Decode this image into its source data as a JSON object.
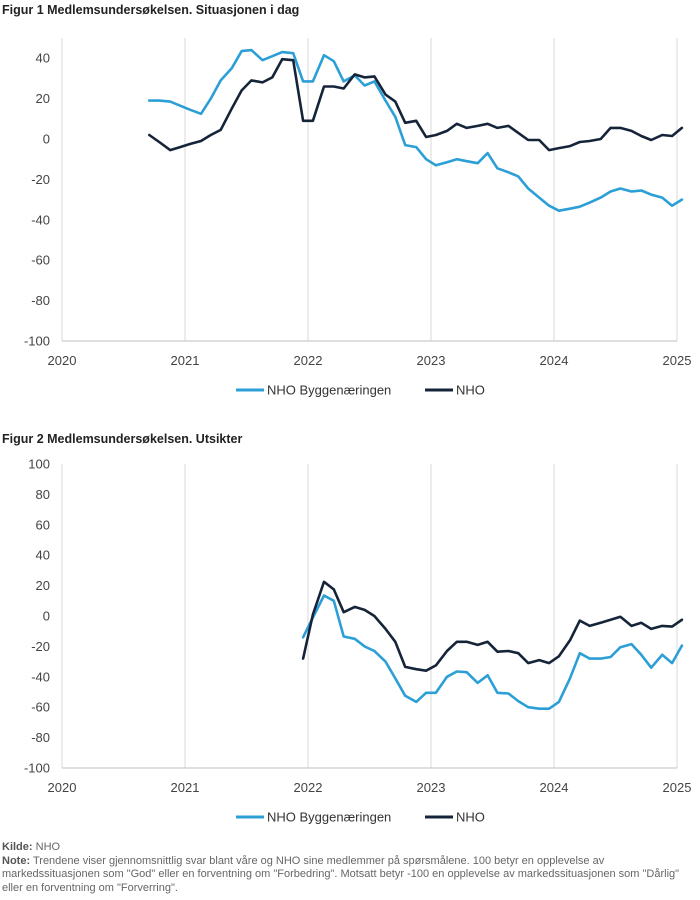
{
  "chart_data": [
    {
      "type": "line",
      "title": "Figur 1 Medlemsundersøkelsen. Situasjonen i dag",
      "xlim": [
        2020,
        2025
      ],
      "ylim": [
        -100,
        50
      ],
      "yticks": [
        -100,
        -80,
        -60,
        -40,
        -20,
        0,
        20,
        40
      ],
      "xticks": [
        2020,
        2021,
        2022,
        2023,
        2024,
        2025
      ],
      "grid": "vertical-gridlines",
      "legend": "bottom-center",
      "series": [
        {
          "name": "NHO Byggenæringen",
          "color": "#2b9fd6",
          "points": [
            [
              2020.71,
              19
            ],
            [
              2020.79,
              19
            ],
            [
              2020.88,
              18.5
            ],
            [
              2020.96,
              16.5
            ],
            [
              2021.04,
              14.5
            ],
            [
              2021.13,
              12.5
            ],
            [
              2021.21,
              20
            ],
            [
              2021.29,
              29
            ],
            [
              2021.38,
              35
            ],
            [
              2021.46,
              43.5
            ],
            [
              2021.54,
              44
            ],
            [
              2021.63,
              39
            ],
            [
              2021.71,
              41
            ],
            [
              2021.79,
              43
            ],
            [
              2021.88,
              42.5
            ],
            [
              2021.96,
              28.5
            ],
            [
              2022.04,
              28.5
            ],
            [
              2022.13,
              41.5
            ],
            [
              2022.21,
              38.5
            ],
            [
              2022.29,
              28.5
            ],
            [
              2022.38,
              31.5
            ],
            [
              2022.46,
              26.5
            ],
            [
              2022.54,
              28.5
            ],
            [
              2022.63,
              19
            ],
            [
              2022.71,
              11
            ],
            [
              2022.79,
              -3
            ],
            [
              2022.88,
              -4
            ],
            [
              2022.96,
              -10
            ],
            [
              2023.04,
              -13
            ],
            [
              2023.13,
              -11.5
            ],
            [
              2023.21,
              -10
            ],
            [
              2023.29,
              -11
            ],
            [
              2023.38,
              -12
            ],
            [
              2023.46,
              -7
            ],
            [
              2023.54,
              -14.5
            ],
            [
              2023.63,
              -16.5
            ],
            [
              2023.71,
              -18.5
            ],
            [
              2023.79,
              -24.5
            ],
            [
              2023.88,
              -29
            ],
            [
              2023.96,
              -33
            ],
            [
              2024.04,
              -35.5
            ],
            [
              2024.13,
              -34.5
            ],
            [
              2024.21,
              -33.5
            ],
            [
              2024.29,
              -31.5
            ],
            [
              2024.38,
              -29
            ],
            [
              2024.46,
              -26
            ],
            [
              2024.54,
              -24.5
            ],
            [
              2024.63,
              -26
            ],
            [
              2024.71,
              -25.5
            ],
            [
              2024.79,
              -27.5
            ],
            [
              2024.88,
              -29
            ],
            [
              2024.96,
              -33
            ],
            [
              2025.04,
              -30
            ]
          ]
        },
        {
          "name": "NHO",
          "color": "#16243a",
          "points": [
            [
              2020.71,
              2
            ],
            [
              2020.79,
              -1.5
            ],
            [
              2020.88,
              -5.5
            ],
            [
              2020.96,
              -4
            ],
            [
              2021.04,
              -2.5
            ],
            [
              2021.13,
              -1
            ],
            [
              2021.21,
              2
            ],
            [
              2021.29,
              4.5
            ],
            [
              2021.38,
              15
            ],
            [
              2021.46,
              24
            ],
            [
              2021.54,
              29
            ],
            [
              2021.63,
              28
            ],
            [
              2021.71,
              30.5
            ],
            [
              2021.79,
              39.5
            ],
            [
              2021.88,
              39
            ],
            [
              2021.96,
              9
            ],
            [
              2022.04,
              9
            ],
            [
              2022.13,
              26
            ],
            [
              2022.21,
              26
            ],
            [
              2022.29,
              25
            ],
            [
              2022.38,
              32
            ],
            [
              2022.46,
              30.5
            ],
            [
              2022.54,
              31
            ],
            [
              2022.63,
              22
            ],
            [
              2022.71,
              18.5
            ],
            [
              2022.79,
              8
            ],
            [
              2022.88,
              9
            ],
            [
              2022.96,
              1
            ],
            [
              2023.04,
              2
            ],
            [
              2023.13,
              4
            ],
            [
              2023.21,
              7.5
            ],
            [
              2023.29,
              5.5
            ],
            [
              2023.38,
              6.5
            ],
            [
              2023.46,
              7.5
            ],
            [
              2023.54,
              5.5
            ],
            [
              2023.63,
              6.5
            ],
            [
              2023.71,
              3
            ],
            [
              2023.79,
              -0.5
            ],
            [
              2023.88,
              -0.5
            ],
            [
              2023.96,
              -5.5
            ],
            [
              2024.04,
              -4.5
            ],
            [
              2024.13,
              -3.5
            ],
            [
              2024.21,
              -1.5
            ],
            [
              2024.29,
              -1
            ],
            [
              2024.38,
              0
            ],
            [
              2024.46,
              5.5
            ],
            [
              2024.54,
              5.5
            ],
            [
              2024.63,
              4
            ],
            [
              2024.71,
              1.5
            ],
            [
              2024.79,
              -0.5
            ],
            [
              2024.88,
              2
            ],
            [
              2024.96,
              1.5
            ],
            [
              2025.04,
              5.5
            ]
          ]
        }
      ]
    },
    {
      "type": "line",
      "title": "Figur 2 Medlemsundersøkelsen. Utsikter",
      "xlim": [
        2020,
        2025
      ],
      "ylim": [
        -100,
        100
      ],
      "yticks": [
        -100,
        -80,
        -60,
        -40,
        -20,
        0,
        20,
        40,
        60,
        80,
        100
      ],
      "xticks": [
        2020,
        2021,
        2022,
        2023,
        2024,
        2025
      ],
      "grid": "vertical-gridlines",
      "legend": "bottom-center",
      "series": [
        {
          "name": "NHO Byggenæringen",
          "color": "#2b9fd6",
          "points": [
            [
              2021.96,
              -14
            ],
            [
              2022.04,
              -1
            ],
            [
              2022.13,
              13.5
            ],
            [
              2022.21,
              10
            ],
            [
              2022.29,
              -13.5
            ],
            [
              2022.38,
              -15
            ],
            [
              2022.46,
              -20
            ],
            [
              2022.54,
              -23
            ],
            [
              2022.63,
              -30
            ],
            [
              2022.71,
              -41
            ],
            [
              2022.79,
              -52.5
            ],
            [
              2022.88,
              -56.5
            ],
            [
              2022.96,
              -50.5
            ],
            [
              2023.04,
              -50.5
            ],
            [
              2023.13,
              -40
            ],
            [
              2023.21,
              -36.5
            ],
            [
              2023.29,
              -37
            ],
            [
              2023.38,
              -44
            ],
            [
              2023.46,
              -39
            ],
            [
              2023.54,
              -50.5
            ],
            [
              2023.63,
              -51
            ],
            [
              2023.71,
              -56
            ],
            [
              2023.79,
              -60
            ],
            [
              2023.88,
              -61
            ],
            [
              2023.96,
              -61
            ],
            [
              2024.04,
              -56.5
            ],
            [
              2024.13,
              -41
            ],
            [
              2024.21,
              -24.5
            ],
            [
              2024.29,
              -28
            ],
            [
              2024.38,
              -28
            ],
            [
              2024.46,
              -27
            ],
            [
              2024.54,
              -20.5
            ],
            [
              2024.63,
              -18.5
            ],
            [
              2024.71,
              -25.5
            ],
            [
              2024.79,
              -34
            ],
            [
              2024.88,
              -25.5
            ],
            [
              2024.96,
              -31
            ],
            [
              2025.04,
              -19.5
            ]
          ]
        },
        {
          "name": "NHO",
          "color": "#16243a",
          "points": [
            [
              2021.96,
              -28
            ],
            [
              2022.04,
              1
            ],
            [
              2022.13,
              22.5
            ],
            [
              2022.21,
              17.5
            ],
            [
              2022.29,
              2.5
            ],
            [
              2022.38,
              6
            ],
            [
              2022.46,
              4
            ],
            [
              2022.54,
              0
            ],
            [
              2022.63,
              -8.5
            ],
            [
              2022.71,
              -17
            ],
            [
              2022.79,
              -33.5
            ],
            [
              2022.88,
              -35
            ],
            [
              2022.96,
              -36
            ],
            [
              2023.04,
              -32.5
            ],
            [
              2023.13,
              -23
            ],
            [
              2023.21,
              -17
            ],
            [
              2023.29,
              -17
            ],
            [
              2023.38,
              -19
            ],
            [
              2023.46,
              -17
            ],
            [
              2023.54,
              -23.5
            ],
            [
              2023.63,
              -23
            ],
            [
              2023.71,
              -24.5
            ],
            [
              2023.79,
              -31
            ],
            [
              2023.88,
              -29
            ],
            [
              2023.96,
              -31
            ],
            [
              2024.04,
              -26.5
            ],
            [
              2024.13,
              -16
            ],
            [
              2024.21,
              -3
            ],
            [
              2024.29,
              -6.5
            ],
            [
              2024.38,
              -4.5
            ],
            [
              2024.46,
              -2.5
            ],
            [
              2024.54,
              -0.5
            ],
            [
              2024.63,
              -6.5
            ],
            [
              2024.71,
              -4.5
            ],
            [
              2024.79,
              -8.5
            ],
            [
              2024.88,
              -6.5
            ],
            [
              2024.96,
              -7
            ],
            [
              2025.04,
              -2.5
            ]
          ]
        }
      ]
    }
  ],
  "footer": {
    "source_label": "Kilde:",
    "source_text": "NHO",
    "note_label": "Note:",
    "note_text": "Trendene viser gjennomsnittlig svar blant våre og NHO sine medlemmer på spørsmålene. 100 betyr en opplevelse av markedssituasjonen som \"God\" eller en forventning om \"Forbedring\". Motsatt betyr -100 en opplevelse av markedssituasjonen som \"Dårlig\" eller en forventning om \"Forverring\"."
  }
}
